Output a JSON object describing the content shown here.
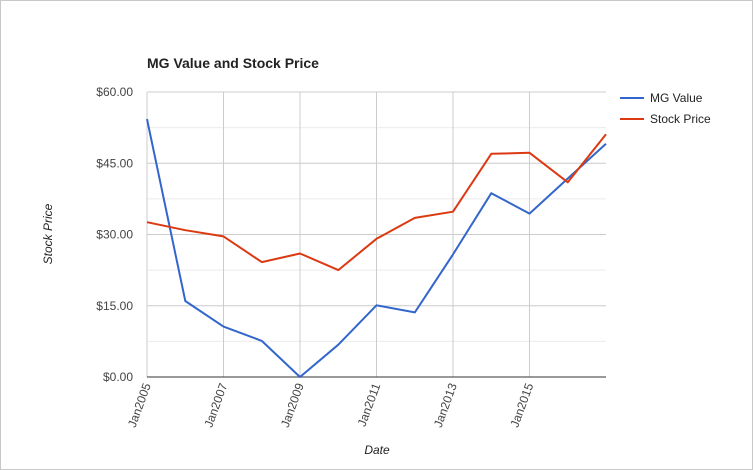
{
  "chart_data": {
    "type": "line",
    "title": "MG Value and Stock Price",
    "xlabel": "Date",
    "ylabel": "Stock Price",
    "x": [
      "2005-01",
      "2006-01",
      "2007-01",
      "2008-01",
      "2009-01",
      "2010-01",
      "2011-01",
      "2012-01",
      "2013-01",
      "2014-01",
      "2015-01",
      "2016-01",
      "2017-01"
    ],
    "x_tick_labels": [
      "Jan2005",
      "Jan2007",
      "Jan2009",
      "Jan2011",
      "Jan2013",
      "Jan2015"
    ],
    "x_tick_values": [
      "2005-01",
      "2007-01",
      "2009-01",
      "2011-01",
      "2013-01",
      "2015-01"
    ],
    "x_range": [
      "2005-01",
      "2017-01"
    ],
    "y_tick_labels": [
      "$0.00",
      "$15.00",
      "$30.00",
      "$45.00",
      "$60.00"
    ],
    "y_tick_values": [
      0,
      15,
      30,
      45,
      60
    ],
    "ylim": [
      0,
      60
    ],
    "grid": true,
    "legend_position": "right",
    "series": [
      {
        "name": "MG Value",
        "color": "#3366cc",
        "values": [
          54.3,
          16.0,
          10.6,
          7.6,
          0.0,
          6.8,
          15.1,
          13.6,
          25.8,
          38.7,
          34.4,
          41.8,
          49.1
        ]
      },
      {
        "name": "Stock Price",
        "color": "#dc3912",
        "values": [
          32.6,
          30.9,
          29.6,
          24.2,
          26.0,
          22.5,
          29.1,
          33.5,
          34.8,
          47.0,
          47.2,
          41.0,
          51.1
        ]
      }
    ]
  }
}
